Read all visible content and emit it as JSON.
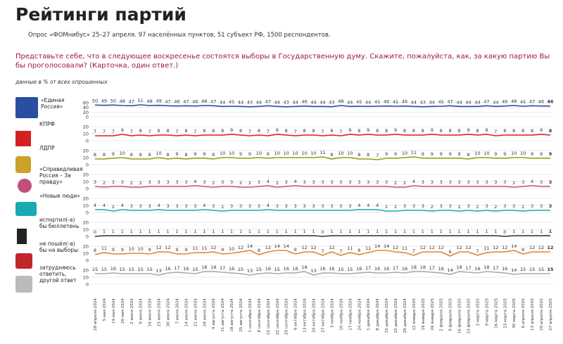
{
  "header": {
    "title": "Рейтинги партий",
    "subtitle": "Опрос «ФОМнибус» 25–27 апреля. 97 населённых пунктов, 51 субъект РФ, 1500 респондентов.",
    "question": "Представьте себе, что в следующее воскресенье состоятся выборы в Государственную думу. Скажите, пожалуйста, как, за какую партию Вы бы проголосовали? (Карточка, один ответ.)",
    "note": "данные в % от всех опрошенных"
  },
  "chart_data": [
    {
      "type": "line",
      "title": "«Единая Россия»",
      "ylim": [
        0,
        60
      ],
      "yticks": [
        0,
        20,
        40,
        60
      ],
      "series": [
        {
          "color": "#2b4ea2",
          "values": [
            50,
            49,
            50,
            48,
            47,
            51,
            48,
            49,
            47,
            46,
            47,
            46,
            48,
            47,
            44,
            45,
            44,
            43,
            44,
            47,
            44,
            43,
            44,
            46,
            44,
            44,
            43,
            48,
            44,
            45,
            44,
            45,
            46,
            45,
            46,
            44,
            43,
            44,
            45,
            47,
            44,
            44,
            44,
            47,
            44,
            46,
            48,
            45,
            47,
            46,
            46
          ]
        }
      ]
    },
    {
      "type": "line",
      "title": "КПРФ",
      "ylim": [
        0,
        20
      ],
      "yticks": [
        0,
        10,
        20
      ],
      "series": [
        {
          "color": "#d42020",
          "values": [
            7,
            7,
            7,
            9,
            7,
            8,
            7,
            8,
            8,
            7,
            8,
            7,
            8,
            8,
            8,
            9,
            8,
            7,
            8,
            7,
            9,
            8,
            7,
            8,
            8,
            7,
            8,
            7,
            9,
            8,
            9,
            8,
            8,
            9,
            8,
            8,
            8,
            9,
            8,
            8,
            8,
            9,
            8,
            9,
            7,
            8,
            8,
            8,
            8,
            9,
            8
          ]
        }
      ]
    },
    {
      "type": "line",
      "title": "ЛДПР",
      "ylim": [
        0,
        20
      ],
      "yticks": [
        0,
        10,
        20
      ],
      "series": [
        {
          "color": "#9c9a14",
          "values": [
            8,
            8,
            9,
            10,
            8,
            8,
            8,
            10,
            8,
            9,
            8,
            9,
            9,
            8,
            10,
            10,
            9,
            9,
            10,
            9,
            10,
            10,
            10,
            10,
            10,
            11,
            8,
            10,
            10,
            8,
            8,
            7,
            9,
            9,
            10,
            11,
            9,
            9,
            9,
            9,
            9,
            8,
            10,
            10,
            9,
            9,
            10,
            10,
            9,
            9,
            9
          ]
        }
      ]
    },
    {
      "type": "line",
      "title": "«Справедливая Россия – За правду»",
      "ylim": [
        0,
        20
      ],
      "yticks": [
        0,
        10,
        20
      ],
      "series": [
        {
          "color": "#c0507a",
          "values": [
            3,
            2,
            3,
            3,
            2,
            2,
            3,
            3,
            3,
            3,
            3,
            4,
            3,
            2,
            3,
            3,
            2,
            2,
            3,
            4,
            2,
            3,
            4,
            3,
            3,
            3,
            3,
            3,
            3,
            3,
            3,
            3,
            3,
            2,
            2,
            4,
            3,
            3,
            3,
            3,
            3,
            3,
            3,
            3,
            3,
            3,
            2,
            3,
            4,
            3,
            3
          ]
        }
      ]
    },
    {
      "type": "line",
      "title": "«Новые люди»",
      "ylim": [
        0,
        20
      ],
      "yticks": [
        0,
        10,
        20
      ],
      "series": [
        {
          "color": "#1aa9b0",
          "values": [
            4,
            4,
            2,
            4,
            3,
            3,
            3,
            4,
            3,
            3,
            3,
            3,
            4,
            3,
            2,
            3,
            3,
            3,
            3,
            4,
            3,
            3,
            3,
            3,
            3,
            3,
            3,
            3,
            3,
            4,
            4,
            4,
            2,
            2,
            3,
            3,
            3,
            2,
            3,
            3,
            2,
            3,
            2,
            3,
            2,
            3,
            3,
            2,
            3,
            3,
            3
          ]
        }
      ]
    },
    {
      "type": "line",
      "title": "испортил(-а) бы бюллетень",
      "ylim": [
        0,
        20
      ],
      "yticks": [
        0,
        10,
        20
      ],
      "series": [
        {
          "color": "#333333",
          "values": [
            0,
            1,
            1,
            1,
            1,
            1,
            1,
            1,
            1,
            1,
            1,
            1,
            1,
            1,
            1,
            1,
            1,
            1,
            1,
            1,
            1,
            1,
            1,
            1,
            1,
            0,
            1,
            1,
            1,
            1,
            1,
            1,
            1,
            1,
            1,
            1,
            1,
            1,
            1,
            1,
            1,
            1,
            1,
            1,
            1,
            0,
            1,
            1,
            1,
            1,
            1
          ]
        }
      ]
    },
    {
      "type": "line",
      "title": "не пошёл(-а) бы на выборы",
      "ylim": [
        0,
        20
      ],
      "yticks": [
        0,
        10,
        20
      ],
      "series": [
        {
          "color": "#e2892e",
          "values": [
            8,
            11,
            9,
            9,
            10,
            10,
            9,
            12,
            12,
            9,
            9,
            11,
            11,
            12,
            9,
            10,
            12,
            14,
            8,
            12,
            14,
            14,
            9,
            12,
            12,
            7,
            12,
            7,
            11,
            8,
            11,
            14,
            14,
            12,
            11,
            7,
            12,
            12,
            12,
            6,
            12,
            12,
            7,
            11,
            12,
            12,
            14,
            9,
            12,
            12,
            12
          ]
        }
      ]
    },
    {
      "type": "line",
      "title": "затрудняюсь ответить, другой ответ",
      "ylim": [
        0,
        20
      ],
      "yticks": [
        0,
        10,
        20
      ],
      "series": [
        {
          "color": "#a9a9a9",
          "values": [
            15,
            15,
            16,
            15,
            15,
            15,
            15,
            13,
            16,
            17,
            16,
            15,
            18,
            18,
            17,
            16,
            15,
            13,
            15,
            16,
            15,
            16,
            16,
            18,
            13,
            16,
            16,
            15,
            15,
            16,
            17,
            16,
            16,
            17,
            16,
            18,
            18,
            17,
            16,
            14,
            18,
            17,
            16,
            18,
            17,
            16,
            14,
            15,
            15,
            15,
            15
          ]
        }
      ],
      "x": [
        "28 апреля 2024",
        "5 мая 2024",
        "19 мая 2024",
        "26 мая 2024",
        "2 июня 2024",
        "9 июня 2024",
        "16 июня 2024",
        "23 июня 2024",
        "30 июня 2024",
        "7 июля 2024",
        "14 июля 2024",
        "21 июля 2024",
        "28 июля 2024",
        "4 августа 2024",
        "11 августа 2024",
        "18 августа 2024",
        "25 августа 2024",
        "1 сентября 2024",
        "8 сентября 2024",
        "15 сентября 2024",
        "22 сентября 2024",
        "29 сентября 2024",
        "6 октября 2024",
        "13 октября 2024",
        "20 октября 2024",
        "27 октября 2024",
        "3 ноября 2024",
        "10 ноября 2024",
        "17 ноября 2024",
        "24 ноября 2024",
        "1 декабря 2024",
        "8 декабря 2024",
        "15 декабря 2024",
        "22 декабря 2024",
        "29 декабря 2024",
        "12 января 2025",
        "19 января 2025",
        "26 января 2025",
        "2 февраля 2025",
        "9 февраля 2025",
        "16 февраля 2025",
        "23 февраля 2025",
        "2 марта 2025",
        "9 марта 2025",
        "16 марта 2025",
        "23 марта 2025",
        "30 марта 2025",
        "6 апреля 2025",
        "13 апреля 2025",
        "20 апреля 2025",
        "27 апреля 2025"
      ]
    }
  ]
}
